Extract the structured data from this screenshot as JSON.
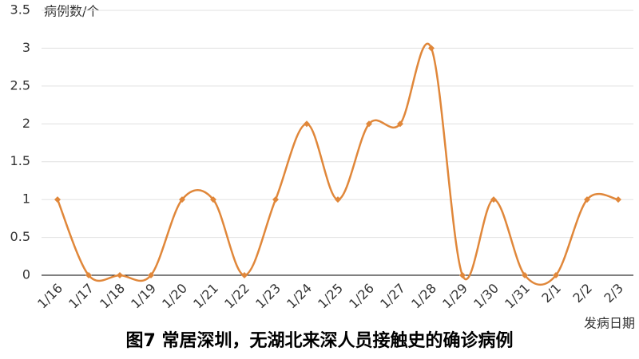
{
  "chart_data": {
    "type": "line",
    "title": "图7 常居深圳，无湖北来深人员接触史的确诊病例",
    "y_label": "病例数/个",
    "x_label": "发病日期",
    "categories": [
      "1/16",
      "1/17",
      "1/18",
      "1/19",
      "1/20",
      "1/21",
      "1/22",
      "1/23",
      "1/24",
      "1/25",
      "1/26",
      "1/27",
      "1/28",
      "1/29",
      "1/30",
      "1/31",
      "2/1",
      "2/2",
      "2/3"
    ],
    "series": [
      {
        "name": "病例数",
        "color": "#e0873a",
        "values": [
          1,
          0,
          0,
          0,
          1,
          1,
          0,
          1,
          2,
          1,
          2,
          2,
          3,
          0,
          1,
          0,
          0,
          1,
          1
        ]
      }
    ],
    "ylim": [
      0,
      3.5
    ],
    "yticks": [
      0,
      0.5,
      1,
      1.5,
      2,
      2.5,
      3,
      3.5
    ],
    "grid": true,
    "smooth": true
  }
}
